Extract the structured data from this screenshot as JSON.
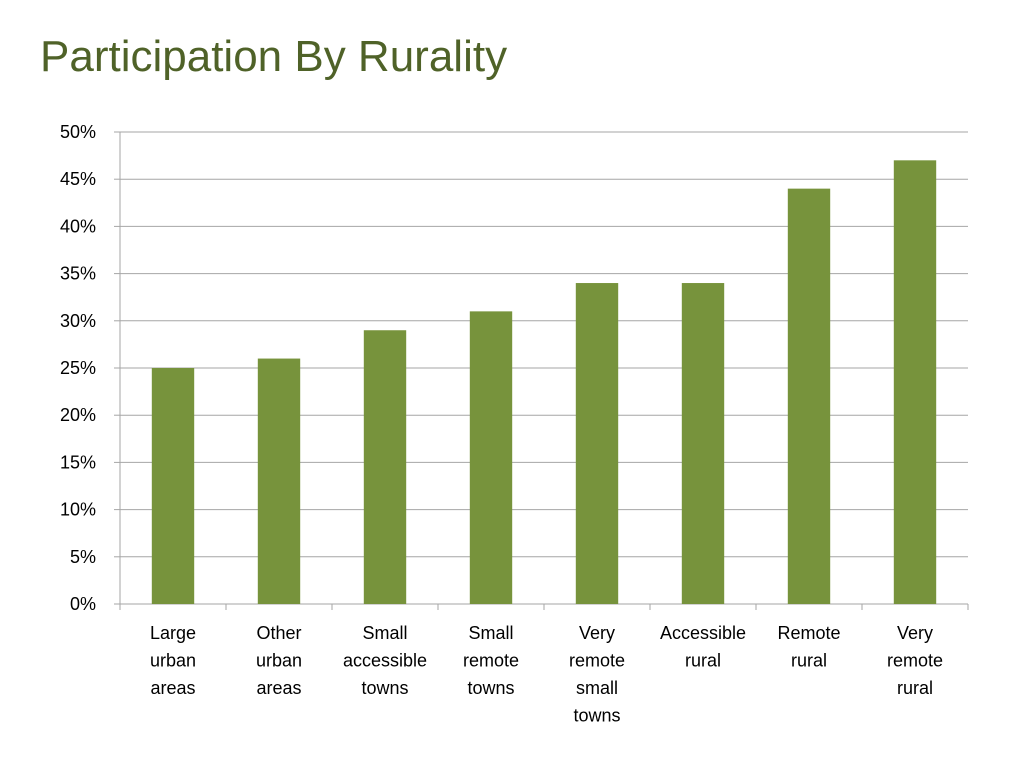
{
  "slide": {
    "title": "Participation By Rurality"
  },
  "colors": {
    "bar": "#77933c",
    "title": "#4f6228",
    "grid": "#a6a6a6",
    "axis": "#a6a6a6"
  },
  "chart_data": {
    "type": "bar",
    "title": "Participation By Rurality",
    "xlabel": "",
    "ylabel": "",
    "categories": [
      [
        "Large",
        "urban",
        "areas"
      ],
      [
        "Other",
        "urban",
        "areas"
      ],
      [
        "Small",
        "accessible",
        "towns"
      ],
      [
        "Small",
        "remote",
        "towns"
      ],
      [
        "Very",
        "remote",
        "small",
        "towns"
      ],
      [
        "Accessible",
        "rural"
      ],
      [
        "Remote",
        "rural"
      ],
      [
        "Very",
        "remote",
        "rural"
      ]
    ],
    "values": [
      25,
      26,
      29,
      31,
      34,
      34,
      44,
      47
    ],
    "ylim": [
      0,
      50
    ],
    "yticks": [
      0,
      5,
      10,
      15,
      20,
      25,
      30,
      35,
      40,
      45,
      50
    ],
    "ytick_labels": [
      "0%",
      "5%",
      "10%",
      "15%",
      "20%",
      "25%",
      "30%",
      "35%",
      "40%",
      "45%",
      "50%"
    ],
    "grid": true,
    "legend": "none"
  }
}
